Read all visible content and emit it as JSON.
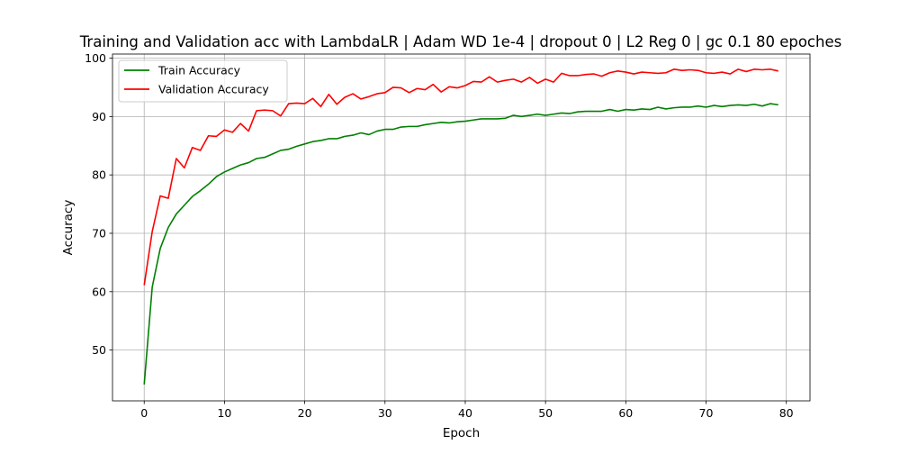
{
  "chart_data": {
    "type": "line",
    "title": "Training and Validation acc with LambdaLR | Adam WD 1e-4 | dropout 0 | L2 Reg 0 | gc 0.1 80 epoches",
    "xlabel": "Epoch",
    "ylabel": "Accuracy",
    "xlim": [
      -3.95,
      82.95
    ],
    "ylim": [
      41.3,
      100.7
    ],
    "xticks": [
      0,
      10,
      20,
      30,
      40,
      50,
      60,
      70,
      80
    ],
    "yticks": [
      50,
      60,
      70,
      80,
      90,
      100
    ],
    "xtick_labels": [
      "0",
      "10",
      "20",
      "30",
      "40",
      "50",
      "60",
      "70",
      "80"
    ],
    "ytick_labels": [
      "50",
      "60",
      "70",
      "80",
      "90",
      "100"
    ],
    "grid": true,
    "legend_position": "top-left",
    "series": [
      {
        "name": "Train Accuracy",
        "color": "#008000",
        "values": [
          44.1,
          60.8,
          67.4,
          71.0,
          73.3,
          74.8,
          76.3,
          77.3,
          78.4,
          79.7,
          80.5,
          81.1,
          81.7,
          82.1,
          82.8,
          83.0,
          83.6,
          84.2,
          84.4,
          84.9,
          85.3,
          85.7,
          85.9,
          86.2,
          86.2,
          86.6,
          86.8,
          87.2,
          86.9,
          87.5,
          87.8,
          87.8,
          88.2,
          88.3,
          88.3,
          88.6,
          88.8,
          89.0,
          88.9,
          89.1,
          89.2,
          89.4,
          89.6,
          89.6,
          89.6,
          89.7,
          90.2,
          90.0,
          90.2,
          90.4,
          90.2,
          90.4,
          90.6,
          90.5,
          90.8,
          90.9,
          90.9,
          90.9,
          91.2,
          90.9,
          91.2,
          91.1,
          91.3,
          91.2,
          91.6,
          91.3,
          91.5,
          91.6,
          91.6,
          91.8,
          91.6,
          91.9,
          91.7,
          91.9,
          92.0,
          91.9,
          92.1,
          91.8,
          92.2,
          92.0
        ]
      },
      {
        "name": "Validation Accuracy",
        "color": "#ff0000",
        "values": [
          61.1,
          70.3,
          76.4,
          76.0,
          82.8,
          81.2,
          84.7,
          84.2,
          86.7,
          86.6,
          87.7,
          87.3,
          88.8,
          87.5,
          91.0,
          91.1,
          91.0,
          90.1,
          92.2,
          92.3,
          92.2,
          93.1,
          91.7,
          93.8,
          92.1,
          93.3,
          93.9,
          93.0,
          93.4,
          93.9,
          94.1,
          95.0,
          94.9,
          94.1,
          94.8,
          94.6,
          95.5,
          94.2,
          95.1,
          94.9,
          95.3,
          96.0,
          95.9,
          96.8,
          95.9,
          96.2,
          96.4,
          95.9,
          96.7,
          95.7,
          96.4,
          95.9,
          97.4,
          97.0,
          97.0,
          97.2,
          97.3,
          96.9,
          97.5,
          97.8,
          97.6,
          97.3,
          97.6,
          97.5,
          97.4,
          97.5,
          98.1,
          97.9,
          98.0,
          97.9,
          97.5,
          97.4,
          97.6,
          97.3,
          98.1,
          97.7,
          98.1,
          98.0,
          98.1,
          97.8
        ]
      }
    ]
  }
}
